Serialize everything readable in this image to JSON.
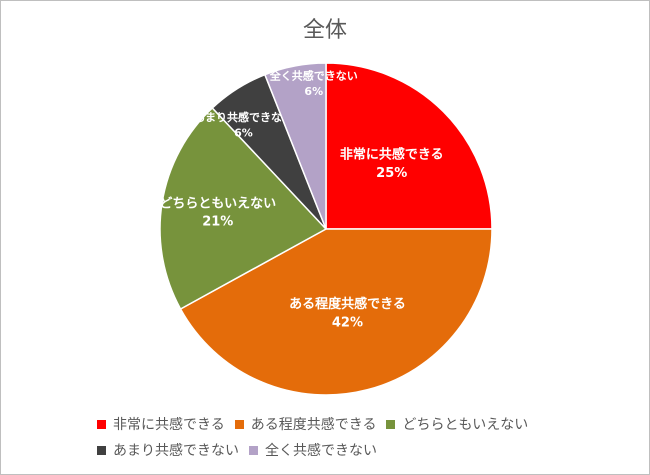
{
  "chart_data": {
    "type": "pie",
    "title": "全体",
    "slices": [
      {
        "label": "非常に共感できる",
        "value": 25,
        "display": "25%",
        "color": "#ff0000",
        "label_color": "#ffffff"
      },
      {
        "label": "ある程度共感できる",
        "value": 42,
        "display": "42%",
        "color": "#e46c0a",
        "label_color": "#ffffff"
      },
      {
        "label": "どちらともいえない",
        "value": 21,
        "display": "21%",
        "color": "#77933c",
        "label_color": "#ffffff"
      },
      {
        "label": "あまり共感できない",
        "value": 6,
        "display": "6%",
        "color": "#404040",
        "label_color": "#ffffff"
      },
      {
        "label": "全く共感できない",
        "value": 6,
        "display": "6%",
        "color": "#b3a2c7",
        "label_color": "#ffffff"
      }
    ],
    "legend_position": "bottom"
  }
}
